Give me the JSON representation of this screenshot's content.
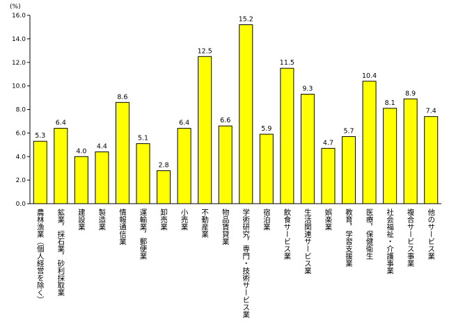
{
  "chart_data": {
    "type": "bar",
    "y_unit": "(%)",
    "ylim": [
      0,
      16
    ],
    "y_ticks": [
      "0.0",
      "2.0",
      "4.0",
      "6.0",
      "8.0",
      "10.0",
      "12.0",
      "14.0",
      "16.0"
    ],
    "grid": false,
    "bar_color": "#ffff00",
    "bar_edge_color": "#000000",
    "categories": [
      "農林漁業（個人経営を除く）",
      "鉱業，採石業，砂利採取業",
      "建設業",
      "製造業",
      "情報通信業",
      "運輸業，郵便業",
      "卸売業",
      "小売業",
      "不動産業",
      "物品賃貸業",
      "学術研究，専門・技術サービス業",
      "宿泊業",
      "飲食サービス業",
      "生活関連サービス業",
      "娯楽業",
      "教育，学習支援業",
      "医療，保健衛生",
      "社会福祉・介護事業",
      "複合サービス事業",
      "他のサービス業"
    ],
    "values": [
      5.3,
      6.4,
      4.0,
      4.4,
      8.6,
      5.1,
      2.8,
      6.4,
      12.5,
      6.6,
      15.2,
      5.9,
      11.5,
      9.3,
      4.7,
      5.7,
      10.4,
      8.1,
      8.9,
      7.4
    ],
    "value_labels": [
      "5.3",
      "6.4",
      "4.0",
      "4.4",
      "8.6",
      "5.1",
      "2.8",
      "6.4",
      "12.5",
      "6.6",
      "15.2",
      "5.9",
      "11.5",
      "9.3",
      "4.7",
      "5.7",
      "10.4",
      "8.1",
      "8.9",
      "7.4"
    ]
  }
}
